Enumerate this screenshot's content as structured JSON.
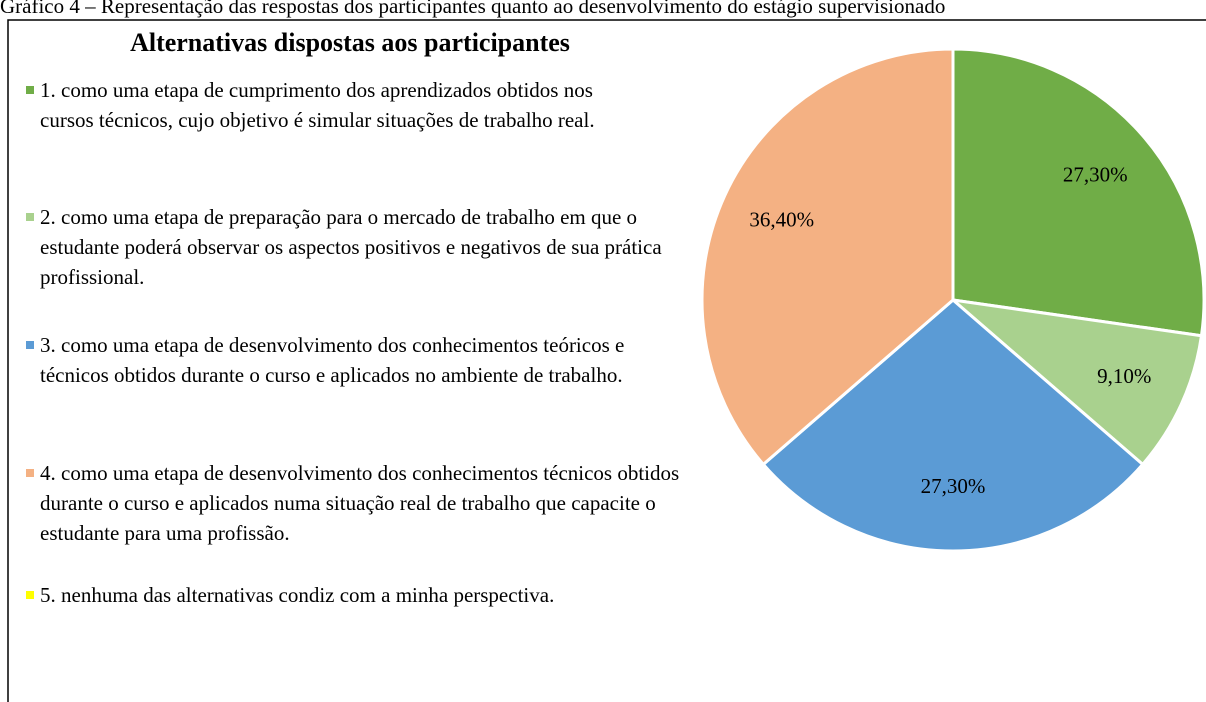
{
  "caption": "Gráfico 4 – Representação das respostas dos participantes quanto ao desenvolvimento do estágio supervisionado",
  "chart_data": {
    "type": "pie",
    "title": "Alternativas dispostas aos participantes",
    "categories": [
      "1. como uma etapa de cumprimento dos aprendizados obtidos nos cursos técnicos, cujo objetivo é simular situações de trabalho real.",
      "2. como uma etapa de preparação para o mercado de trabalho em que o estudante poderá observar os aspectos positivos e negativos de sua prática profissional.",
      "3. como uma etapa de desenvolvimento dos conhecimentos teóricos e técnicos obtidos durante o curso e aplicados no ambiente de trabalho.",
      "4. como uma etapa de desenvolvimento dos conhecimentos técnicos obtidos durante o curso e aplicados numa situação real de trabalho que capacite o estudante para uma profissão.",
      "5. nenhuma das alternativas condiz com a minha perspectiva."
    ],
    "values": [
      27.3,
      9.1,
      27.3,
      36.4,
      0
    ],
    "value_labels": [
      "27,30%",
      "9,10%",
      "27,30%",
      "36,40%",
      null
    ],
    "colors": [
      "#70ad47",
      "#a9d18e",
      "#5b9bd5",
      "#f4b183",
      "#ffff00"
    ],
    "legend": "left"
  }
}
